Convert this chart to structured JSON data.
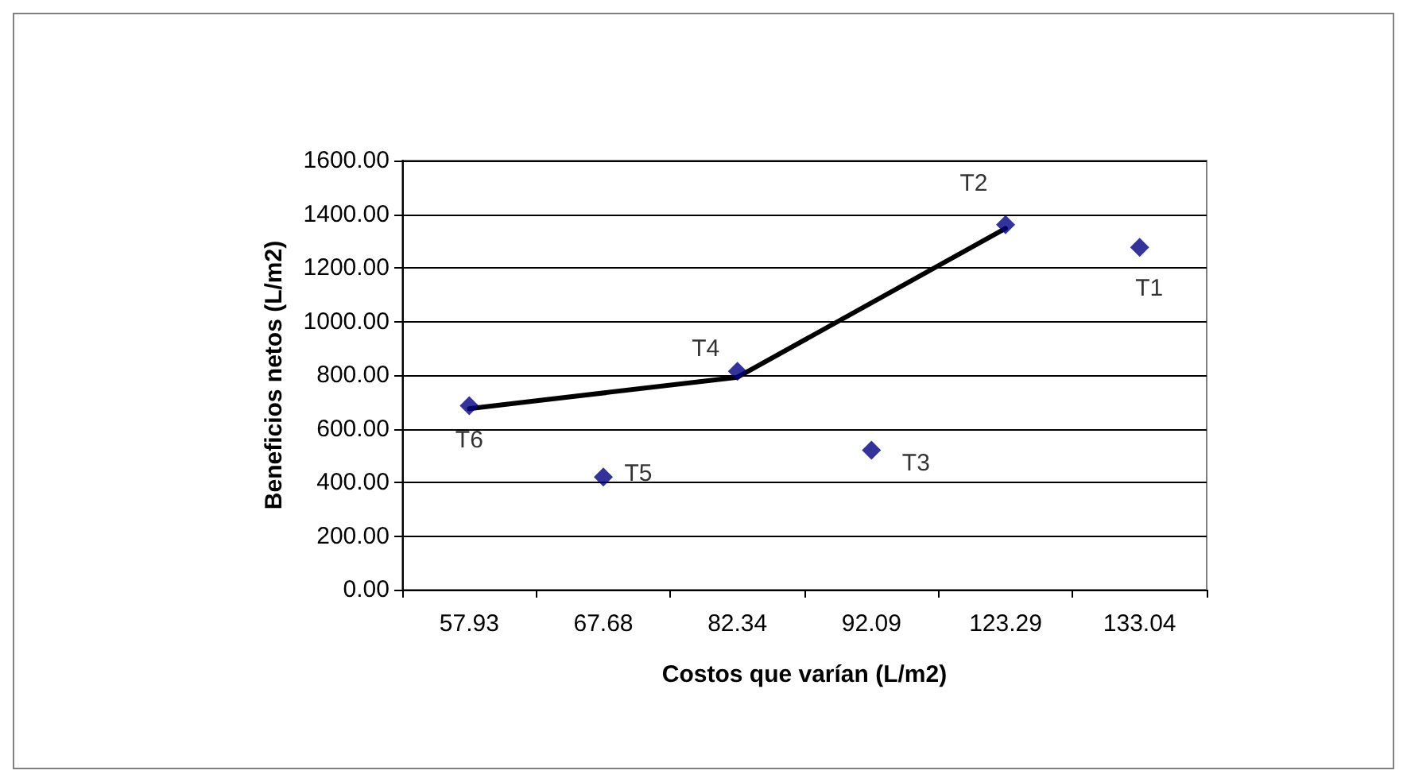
{
  "chart_data": {
    "type": "scatter",
    "xlabel": "Costos que varían (L/m2)",
    "ylabel": "Beneficios netos (L/m2)",
    "categories": [
      "57.93",
      "67.68",
      "82.34",
      "92.09",
      "123.29",
      "133.04"
    ],
    "series": [
      {
        "color": "#000080",
        "marker": "diamond",
        "values": [
          686,
          420,
          814,
          520,
          1361,
          1276
        ]
      },
      {
        "type": "line",
        "color": "#000000",
        "marker": "none",
        "line_style": "solid",
        "values": [
          675,
          null,
          792,
          null,
          1347,
          null
        ]
      }
    ],
    "ylim": [
      0,
      1600
    ],
    "yticks": [
      {
        "value": 0,
        "label": "0.00"
      },
      {
        "value": 200,
        "label": "200.00"
      },
      {
        "value": 400,
        "label": "400.00"
      },
      {
        "value": 600,
        "label": "600.00"
      },
      {
        "value": 800,
        "label": "800.00"
      },
      {
        "value": 1000,
        "label": "1000.00"
      },
      {
        "value": 1200,
        "label": "1200.00"
      },
      {
        "value": 1400,
        "label": "1400.00"
      },
      {
        "value": 1600,
        "label": "1600.00"
      }
    ],
    "grid": "y",
    "annotations": [
      {
        "text": "T6",
        "x": "57.93",
        "y": 686
      },
      {
        "text": "T5",
        "x": "67.68",
        "y": 420
      },
      {
        "text": "T4",
        "x": "82.34",
        "y": 814
      },
      {
        "text": "T3",
        "x": "92.09",
        "y": 520
      },
      {
        "text": "T2",
        "x": "123.29",
        "y": 1361
      },
      {
        "text": "T1",
        "x": "133.04",
        "y": 1276
      }
    ]
  }
}
